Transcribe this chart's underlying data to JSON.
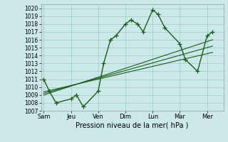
{
  "background_color": "#cce8e8",
  "grid_color": "#99cccc",
  "line_color": "#1a5c1a",
  "xlabel": "Pression niveau de la mer( hPa )",
  "ylim": [
    1007,
    1020.5
  ],
  "yticks": [
    1007,
    1008,
    1009,
    1010,
    1011,
    1012,
    1013,
    1014,
    1015,
    1016,
    1017,
    1018,
    1019,
    1020
  ],
  "xtick_labels": [
    "Sam",
    "Jeu",
    "Ven",
    "Dim",
    "Lun",
    "Mar",
    "Mer"
  ],
  "xtick_positions": [
    0,
    1,
    2,
    3,
    4,
    5,
    6
  ],
  "xlim": [
    -0.1,
    6.6
  ],
  "series1_x": [
    0.0,
    0.2,
    0.45,
    1.0,
    1.2,
    1.45,
    2.0,
    2.2,
    2.45,
    2.65,
    3.0,
    3.2,
    3.45,
    3.65,
    4.0,
    4.2,
    4.45,
    5.0,
    5.2,
    5.65,
    6.0,
    6.2
  ],
  "series1_y": [
    1011,
    1009.5,
    1008,
    1008.5,
    1009,
    1007.5,
    1009.5,
    1013,
    1016,
    1016.5,
    1018,
    1018.5,
    1018,
    1017,
    1019.8,
    1019.2,
    1017.5,
    1015.5,
    1013.5,
    1012,
    1016.5,
    1017
  ],
  "series2_x": [
    0.0,
    6.2
  ],
  "series2_y": [
    1009.0,
    1016.0
  ],
  "series3_x": [
    0.0,
    6.2
  ],
  "series3_y": [
    1009.2,
    1015.2
  ],
  "series4_x": [
    0.0,
    6.2
  ],
  "series4_y": [
    1009.4,
    1014.4
  ],
  "linewidth": 1.0,
  "markersize": 4,
  "marker": "+"
}
